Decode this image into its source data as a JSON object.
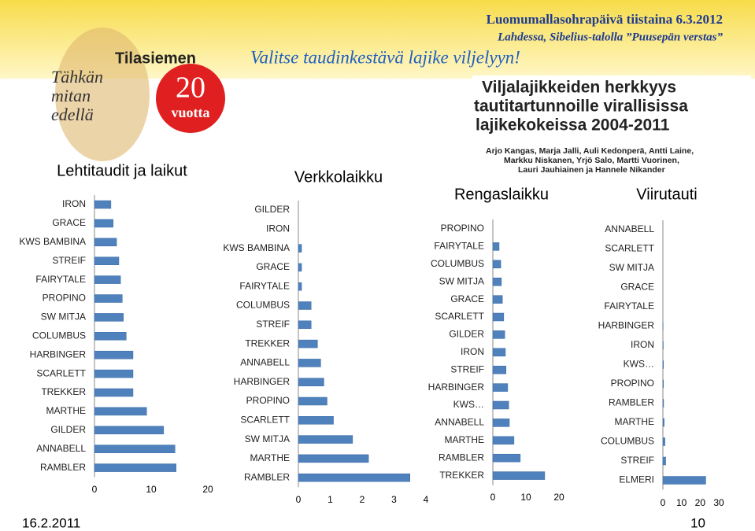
{
  "header": {
    "event": "Luomumallasohrapäivä tiistaina 6.3.2012",
    "venue": "Lahdessa, Sibelius-talolla ”Puusepän verstas”",
    "slogan": "Valitse taudinkestävä lajike viljelyyn!",
    "logo": {
      "brand": "Tilasiemen",
      "tagline_1": "Tähkän",
      "tagline_2": "mitan",
      "tagline_3": "edellä",
      "years": "20",
      "years_label": "vuotta"
    },
    "study_title_1": "Viljalajikkeiden herkkyys",
    "study_title_2": "tautitartunnoille virallisissa",
    "study_title_3": "lajikekokeissa 2004-2011",
    "authors_1": "Arjo Kangas, Marja Jalli, Auli Kedonperä, Antti Laine,",
    "authors_2": "Markku Niskanen, Yrjö Salo, Martti Vuorinen,",
    "authors_3": "Lauri Jauhiainen ja Hannele Nikander"
  },
  "footer": {
    "date": "16.2.2011",
    "page": "10"
  },
  "chart_data": [
    {
      "type": "bar",
      "orientation": "horizontal",
      "title": "Lehtitaudit ja laikut",
      "color": "#4f81bd",
      "categories": [
        "IRON",
        "GRACE",
        "KWS BAMBINA",
        "STREIF",
        "FAIRYTALE",
        "PROPINO",
        "SW MITJA",
        "COLUMBUS",
        "HARBINGER",
        "SCARLETT",
        "TREKKER",
        "MARTHE",
        "GILDER",
        "ANNABELL",
        "RAMBLER"
      ],
      "values": [
        2.9,
        3.3,
        3.9,
        4.3,
        4.6,
        4.9,
        5.1,
        5.6,
        6.8,
        6.8,
        6.8,
        9.2,
        12.2,
        14.2,
        14.4
      ],
      "xlim": [
        0,
        20
      ],
      "xticks": [
        0,
        10,
        20
      ]
    },
    {
      "type": "bar",
      "orientation": "horizontal",
      "title": "Verkkolaikku",
      "color": "#4f81bd",
      "categories": [
        "GILDER",
        "IRON",
        "KWS BAMBINA",
        "GRACE",
        "FAIRYTALE",
        "COLUMBUS",
        "STREIF",
        "TREKKER",
        "ANNABELL",
        "HARBINGER",
        "PROPINO",
        "SCARLETT",
        "SW MITJA",
        "MARTHE",
        "RAMBLER"
      ],
      "values": [
        0,
        0,
        0.1,
        0.1,
        0.1,
        0.4,
        0.4,
        0.6,
        0.7,
        0.8,
        0.9,
        1.1,
        1.7,
        2.2,
        3.5
      ],
      "xlim": [
        0,
        4
      ],
      "xticks": [
        0,
        1,
        2,
        3,
        4
      ]
    },
    {
      "type": "bar",
      "orientation": "horizontal",
      "title": "Rengaslaikku",
      "color": "#4f81bd",
      "categories": [
        "PROPINO",
        "FAIRYTALE",
        "COLUMBUS",
        "SW MITJA",
        "GRACE",
        "SCARLETT",
        "GILDER",
        "IRON",
        "STREIF",
        "HARBINGER",
        "KWS…",
        "ANNABELL",
        "MARTHE",
        "RAMBLER",
        "TREKKER"
      ],
      "values": [
        0,
        1.9,
        2.4,
        2.6,
        2.9,
        3.3,
        3.6,
        3.8,
        4.0,
        4.5,
        4.8,
        5.0,
        6.4,
        8.3,
        15.7
      ],
      "xlim": [
        0,
        20
      ],
      "xticks": [
        0,
        10,
        20
      ]
    },
    {
      "type": "bar",
      "orientation": "horizontal",
      "title": "Viirutauti",
      "color": "#4f81bd",
      "categories": [
        "ANNABELL",
        "SCARLETT",
        "SW MITJA",
        "GRACE",
        "FAIRYTALE",
        "HARBINGER",
        "IRON",
        "KWS…",
        "PROPINO",
        "RAMBLER",
        "MARTHE",
        "COLUMBUS",
        "STREIF",
        "ELMERI"
      ],
      "values": [
        0,
        0,
        0,
        0,
        0,
        0.1,
        0.2,
        0.3,
        0.3,
        0.4,
        0.7,
        1.1,
        1.5,
        23
      ],
      "xlim": [
        0,
        30
      ],
      "xticks": [
        0,
        10,
        20,
        30
      ]
    }
  ]
}
